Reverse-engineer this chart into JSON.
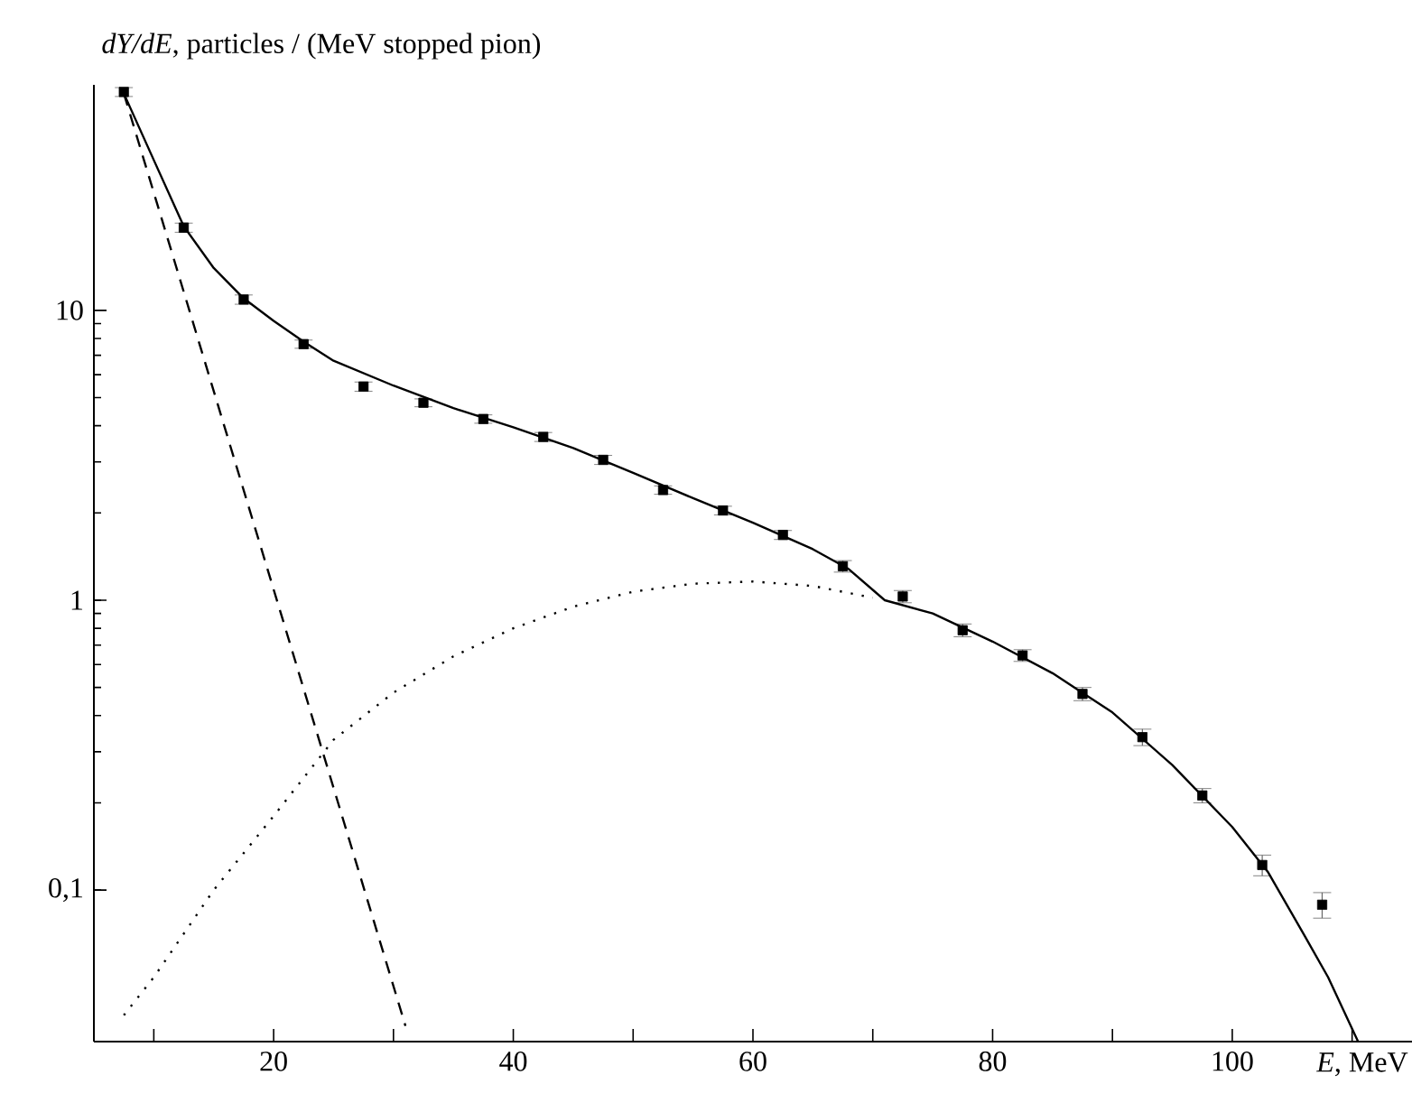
{
  "chart_data": {
    "type": "scatter",
    "ylabel": "*dY/dE*, particles / (MeV stopped pion)",
    "xlabel": "*E*, MeV",
    "log": "y",
    "xlim": [
      5,
      115
    ],
    "ylim": [
      0.03,
      60
    ],
    "xticks": [
      {
        "value": 10,
        "label": null
      },
      20,
      {
        "value": 30,
        "label": null
      },
      40,
      {
        "value": 50,
        "label": null
      },
      60,
      {
        "value": 70,
        "label": null
      },
      80,
      {
        "value": 90,
        "label": null
      },
      100,
      {
        "value": 110,
        "label": null
      }
    ],
    "yticks": [
      {
        "value": 0.1,
        "label": "0,1"
      },
      1,
      10
    ],
    "series": [
      {
        "color": "#000000",
        "marker": "square",
        "x": [
          7.5,
          12.5,
          17.5,
          22.5,
          27.5,
          32.5,
          37.5,
          42.5,
          47.5,
          52.5,
          57.5,
          62.5,
          67.5,
          72.5,
          77.5,
          82.5,
          87.5,
          92.5,
          97.5,
          102.5,
          107.5
        ],
        "values": [
          56.7,
          19.3,
          10.9,
          7.65,
          5.46,
          4.8,
          4.22,
          3.66,
          3.05,
          2.4,
          2.04,
          1.68,
          1.31,
          1.03,
          0.788,
          0.645,
          0.475,
          0.337,
          0.212,
          0.122,
          0.089
        ],
        "errors": [
          2,
          0.7,
          0.4,
          0.25,
          0.2,
          0.15,
          0.14,
          0.13,
          0.11,
          0.08,
          0.07,
          0.06,
          0.06,
          0.05,
          0.04,
          0.03,
          0.025,
          0.022,
          0.012,
          0.01,
          0.009
        ]
      },
      {
        "type": "line",
        "color": "#000000",
        "line_style": "solid",
        "marker": "none",
        "x": [
          7.5,
          10,
          12.5,
          15,
          17.5,
          20,
          22.5,
          25,
          30,
          35,
          40,
          45,
          50,
          55,
          60,
          65,
          68,
          71,
          75,
          80,
          85,
          90,
          95,
          100,
          103,
          106,
          108,
          110.5
        ],
        "values": [
          56,
          33,
          19.5,
          14,
          11,
          9.2,
          7.8,
          6.7,
          5.5,
          4.6,
          3.95,
          3.35,
          2.75,
          2.25,
          1.85,
          1.5,
          1.28,
          1,
          0.9,
          0.72,
          0.56,
          0.41,
          0.27,
          0.165,
          0.115,
          0.07,
          0.05,
          0.03
        ]
      },
      {
        "type": "line",
        "color": "#000000",
        "line_style": "dashed",
        "marker": "none",
        "x": [
          7.5,
          31
        ],
        "values": [
          56,
          0.034
        ]
      },
      {
        "type": "line",
        "color": "#000000",
        "line_style": "dotted",
        "marker": "none",
        "x": [
          7.5,
          10,
          15,
          20,
          25,
          30,
          35,
          40,
          45,
          50,
          55,
          60,
          65,
          70
        ],
        "values": [
          0.037,
          0.05,
          0.1,
          0.18,
          0.33,
          0.48,
          0.64,
          0.8,
          0.95,
          1.07,
          1.14,
          1.16,
          1.12,
          1.02
        ]
      }
    ]
  }
}
